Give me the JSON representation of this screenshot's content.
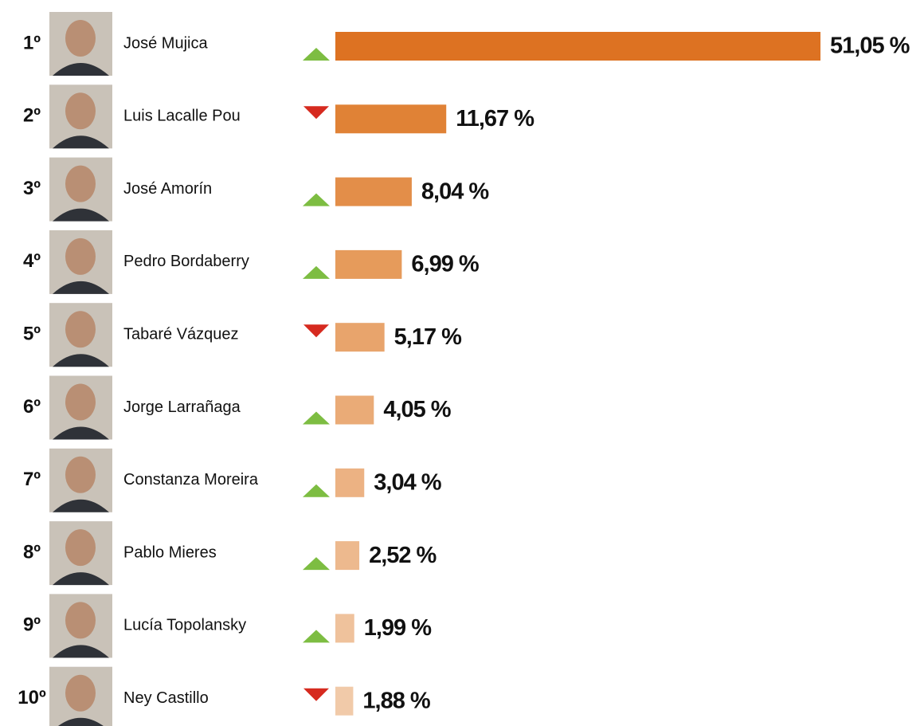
{
  "chart_data": {
    "type": "bar",
    "orientation": "horizontal",
    "ranks": [
      "1º",
      "2º",
      "3º",
      "4º",
      "5º",
      "6º",
      "7º",
      "8º",
      "9º",
      "10º"
    ],
    "categories": [
      "José Mujica",
      "Luis Lacalle Pou",
      "José Amorín",
      "Pedro Bordaberry",
      "Tabaré Vázquez",
      "Jorge Larrañaga",
      "Constanza Moreira",
      "Pablo Mieres",
      "Lucía Topolansky",
      "Ney Castillo"
    ],
    "values": [
      51.05,
      11.67,
      8.04,
      6.99,
      5.17,
      4.05,
      3.04,
      2.52,
      1.99,
      1.88
    ],
    "value_labels": [
      "51,05 %",
      "11,67 %",
      "8,04 %",
      "6,99 %",
      "5,17 %",
      "4,05 %",
      "3,04 %",
      "2,52 %",
      "1,99 %",
      "1,88 %"
    ],
    "trend": [
      "up",
      "down",
      "up",
      "up",
      "down",
      "up",
      "up",
      "up",
      "up",
      "down"
    ],
    "trend_colors": {
      "up": "#7dbd42",
      "down": "#d62a1f"
    },
    "colors": [
      "#dd7222",
      "#e08236",
      "#e38e49",
      "#e69b5b",
      "#e8a46c",
      "#eaab77",
      "#ecb283",
      "#edb98e",
      "#efc29c",
      "#f1caa9"
    ]
  }
}
